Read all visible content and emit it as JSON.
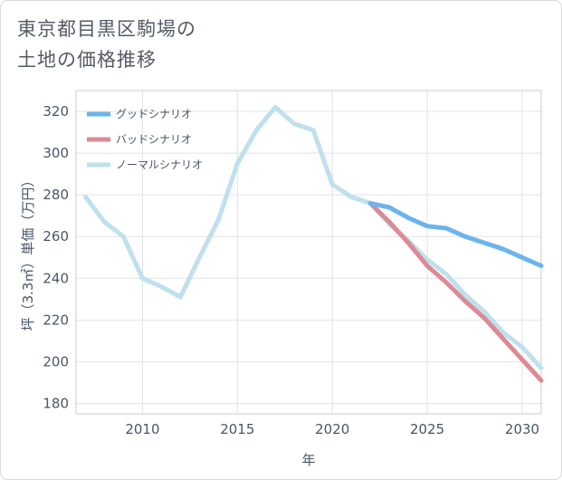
{
  "title_lines": [
    "東京都目黒区駒場の",
    "土地の価格推移"
  ],
  "chart_data": {
    "type": "line",
    "title": "東京都目黒区駒場の土地の価格推移",
    "xlabel": "年",
    "ylabel": "坪（3.3㎡）単価（万円）",
    "xlim": [
      2006.5,
      2031
    ],
    "ylim": [
      175,
      330
    ],
    "xticks": [
      2010,
      2015,
      2020,
      2025,
      2030
    ],
    "yticks": [
      180,
      200,
      220,
      240,
      260,
      280,
      300,
      320
    ],
    "legend_position": "top-left",
    "series": [
      {
        "name": "ノーマルシナリオ",
        "color": "#bfe0ec",
        "x": [
          2007,
          2008,
          2009,
          2010,
          2011,
          2012,
          2013,
          2014,
          2015,
          2016,
          2017,
          2018,
          2019,
          2020,
          2021,
          2022,
          2023,
          2024,
          2025,
          2026,
          2027,
          2028,
          2029,
          2030,
          2031
        ],
        "values": [
          279,
          267,
          260,
          240,
          236,
          231,
          250,
          268,
          295,
          311,
          322,
          314,
          311,
          285,
          279,
          276,
          266,
          258,
          249,
          242,
          232,
          224,
          214,
          207,
          197
        ]
      },
      {
        "name": "バッドシナリオ",
        "color": "#dc8a96",
        "x": [
          2022,
          2023,
          2024,
          2025,
          2026,
          2027,
          2028,
          2029,
          2030,
          2031
        ],
        "values": [
          276,
          267,
          257,
          246,
          238,
          229,
          221,
          211,
          201,
          191
        ]
      },
      {
        "name": "グッドシナリオ",
        "color": "#6cb4ec",
        "x": [
          2022,
          2023,
          2024,
          2025,
          2026,
          2027,
          2028,
          2029,
          2030,
          2031
        ],
        "values": [
          276,
          274,
          269,
          265,
          264,
          260,
          257,
          254,
          250,
          246
        ]
      }
    ],
    "legend": [
      {
        "name": "グッドシナリオ",
        "color": "#6cb4ec"
      },
      {
        "name": "バッドシナリオ",
        "color": "#dc8a96"
      },
      {
        "name": "ノーマルシナリオ",
        "color": "#bfe0ec"
      }
    ]
  }
}
